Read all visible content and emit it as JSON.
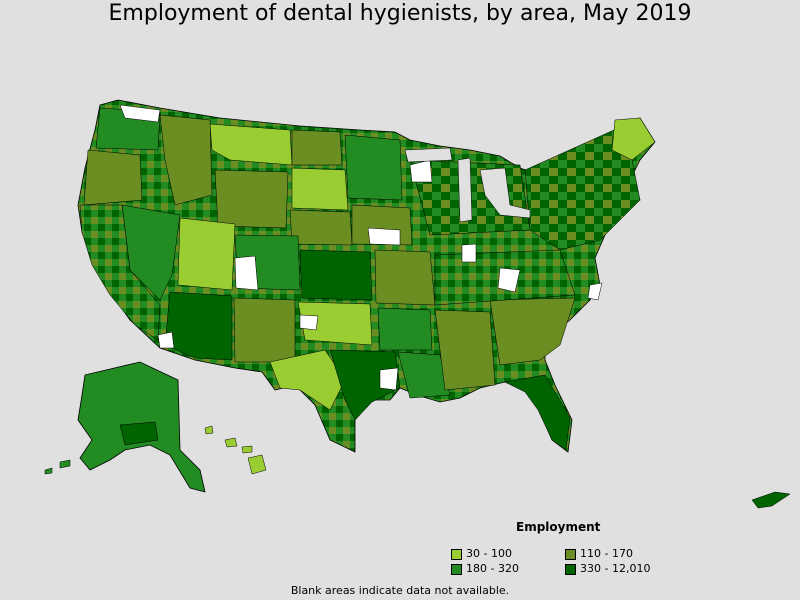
{
  "title": "Employment of dental hygienists, by area, May 2019",
  "legend": {
    "title": "Employment",
    "items": [
      {
        "label": "30 - 100",
        "color": "#9acd32"
      },
      {
        "label": "110 - 170",
        "color": "#6b8e23"
      },
      {
        "label": "180 - 320",
        "color": "#228b22"
      },
      {
        "label": "330 - 12,010",
        "color": "#006400"
      }
    ]
  },
  "note": "Blank areas indicate data not available.",
  "colors": {
    "background": "#e0e0e0",
    "no_data": "#ffffff",
    "border": "#000000"
  }
}
